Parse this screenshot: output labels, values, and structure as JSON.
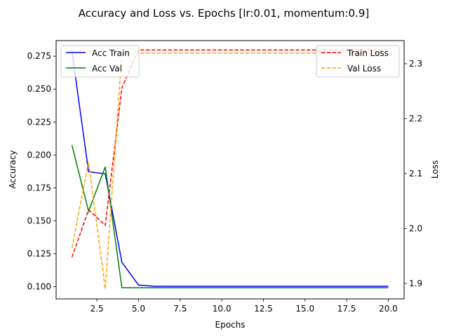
{
  "chart_data": {
    "type": "line",
    "title": "Accuracy and Loss vs. Epochs [lr:0.01, momentum:0.9]",
    "xlabel": "Epochs",
    "ylabel_left": "Accuracy",
    "ylabel_right": "Loss",
    "xlim": [
      0.05,
      20.95
    ],
    "ylim_left": [
      0.0907,
      0.2868
    ],
    "ylim_right": [
      1.872,
      2.342
    ],
    "x_ticks": [
      2.5,
      5.0,
      7.5,
      10.0,
      12.5,
      15.0,
      17.5,
      20.0
    ],
    "x_tick_labels": [
      "2.5",
      "5.0",
      "7.5",
      "10.0",
      "12.5",
      "15.0",
      "17.5",
      "20.0"
    ],
    "y_left_ticks": [
      0.1,
      0.125,
      0.15,
      0.175,
      0.2,
      0.225,
      0.25,
      0.275
    ],
    "y_left_tick_labels": [
      "0.100",
      "0.125",
      "0.150",
      "0.175",
      "0.200",
      "0.225",
      "0.250",
      "0.275"
    ],
    "y_right_ticks": [
      1.9,
      2.0,
      2.1,
      2.2,
      2.3
    ],
    "y_right_tick_labels": [
      "1.9",
      "2.0",
      "2.1",
      "2.2",
      "2.3"
    ],
    "grid": false,
    "x": [
      1,
      2,
      3,
      4,
      5,
      6,
      7,
      8,
      9,
      10,
      11,
      12,
      13,
      14,
      15,
      16,
      17,
      18,
      19,
      20
    ],
    "series": [
      {
        "name": "Acc Train",
        "axis": "left",
        "color": "#0000ff",
        "dash": "solid",
        "values": [
          0.2785,
          0.1873,
          0.1857,
          0.1185,
          0.1012,
          0.1003,
          0.1003,
          0.1003,
          0.1003,
          0.1003,
          0.1003,
          0.1003,
          0.1003,
          0.1003,
          0.1003,
          0.1003,
          0.1003,
          0.1003,
          0.1003,
          0.1003
        ]
      },
      {
        "name": "Acc Val",
        "axis": "left",
        "color": "#008000",
        "dash": "solid",
        "values": [
          0.2074,
          0.1572,
          0.191,
          0.0992,
          0.0992,
          0.0992,
          0.0992,
          0.0992,
          0.0992,
          0.0992,
          0.0992,
          0.0992,
          0.0992,
          0.0992,
          0.0992,
          0.0992,
          0.0992,
          0.0992,
          0.0992,
          0.0992
        ]
      },
      {
        "name": "Train Loss",
        "axis": "right",
        "color": "#ff0000",
        "dash": "dashed",
        "values": [
          1.948,
          2.034,
          2.006,
          2.256,
          2.325,
          2.325,
          2.325,
          2.325,
          2.325,
          2.325,
          2.325,
          2.325,
          2.325,
          2.325,
          2.325,
          2.325,
          2.325,
          2.325,
          2.325,
          2.325
        ]
      },
      {
        "name": "Val Loss",
        "axis": "right",
        "color": "#ffa500",
        "dash": "dashed",
        "values": [
          1.965,
          2.121,
          1.89,
          2.319,
          2.319,
          2.319,
          2.319,
          2.319,
          2.319,
          2.319,
          2.319,
          2.319,
          2.319,
          2.319,
          2.319,
          2.319,
          2.319,
          2.319,
          2.319,
          2.319
        ]
      }
    ],
    "legend_left": {
      "placement": "upper-left",
      "entries": [
        "Acc Train",
        "Acc Val"
      ]
    },
    "legend_right": {
      "placement": "upper-right",
      "entries": [
        "Train Loss",
        "Val Loss"
      ]
    }
  }
}
